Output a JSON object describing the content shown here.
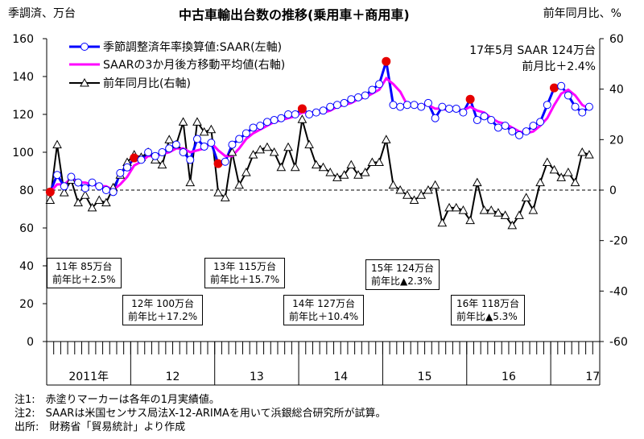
{
  "chart_data": {
    "type": "line",
    "title": "中古車輸出台数の推移(乗用車＋商用車)",
    "left_axis_label": "季調済、万台",
    "right_axis_label": "前年同月比、%",
    "ylim_left": [
      0,
      160
    ],
    "yticks_left": [
      0,
      20,
      40,
      60,
      80,
      100,
      120,
      140,
      160
    ],
    "ylim_right": [
      -60,
      60
    ],
    "yticks_right": [
      "-60",
      "-40",
      "-20",
      "0",
      "20",
      "40",
      "60"
    ],
    "legend_position": "top-left",
    "legend": [
      "季節調整済年率換算値:SAAR(左軸)",
      "SAARの3か月後方移動平均値(右軸)",
      "前年同月比(右軸)"
    ],
    "x_start": "2011-01",
    "year_labels": [
      "2011年",
      "12",
      "13",
      "14",
      "15",
      "16",
      "17"
    ],
    "zero_line": "dashed",
    "latest_note": [
      "17年5月 SAAR 124万台",
      "前月比＋2.4%"
    ],
    "series": [
      {
        "name": "季節調整済年率換算値:SAAR(左軸)",
        "color": "#0000ff",
        "marker": "open-circle",
        "axis": "left",
        "values": [
          79,
          88,
          82,
          87,
          84,
          81,
          84,
          82,
          80,
          79,
          89,
          92,
          97,
          96,
          100,
          98,
          100,
          102,
          104,
          100,
          96,
          107,
          103,
          105,
          94,
          95,
          104,
          107,
          110,
          113,
          114,
          116,
          117,
          118,
          120,
          120,
          123,
          120,
          121,
          122,
          124,
          125,
          126,
          128,
          129,
          130,
          133,
          136,
          148,
          125,
          124,
          125,
          125,
          124,
          126,
          118,
          124,
          123,
          123,
          121,
          128,
          117,
          119,
          117,
          113,
          114,
          111,
          109,
          111,
          114,
          116,
          125,
          134,
          135,
          130,
          124,
          121,
          124
        ]
      },
      {
        "name": "SAARの3か月後方移動平均値(右軸)",
        "color": "#ff00ff",
        "axis": "left",
        "values": [
          79,
          83,
          83,
          86,
          84,
          84,
          83,
          82,
          82,
          80,
          83,
          87,
          93,
          95,
          98,
          98,
          99,
          100,
          102,
          102,
          100,
          101,
          102,
          105,
          101,
          98,
          98,
          102,
          107,
          110,
          112,
          114,
          116,
          117,
          118,
          119,
          121,
          121,
          121,
          121,
          122,
          124,
          125,
          126,
          128,
          129,
          131,
          133,
          139,
          136,
          132,
          125,
          125,
          125,
          125,
          123,
          123,
          122,
          123,
          122,
          124,
          122,
          121,
          118,
          116,
          115,
          113,
          111,
          110,
          111,
          114,
          118,
          125,
          131,
          133,
          130,
          125,
          123
        ]
      },
      {
        "name": "前年同月比(右軸)",
        "color": "#000000",
        "marker": "open-triangle",
        "axis": "right",
        "values": [
          -4,
          18,
          -1,
          4,
          -5,
          -2,
          -7,
          -4,
          -5,
          1,
          6,
          11,
          14,
          13,
          15,
          12,
          10,
          20,
          18,
          27,
          3,
          27,
          23,
          24,
          -1,
          -3,
          15,
          2,
          7,
          14,
          16,
          17,
          15,
          9,
          17,
          9,
          28,
          18,
          10,
          9,
          7,
          5,
          6,
          10,
          6,
          7,
          11,
          11,
          20,
          2,
          0,
          -2,
          -4,
          -2,
          0,
          2,
          -13,
          -7,
          -7,
          -8,
          -12,
          3,
          -8,
          -8,
          -9,
          -10,
          -14,
          -10,
          -3,
          -8,
          3,
          11,
          8,
          5,
          7,
          3,
          15,
          14
        ]
      }
    ],
    "january_markers": {
      "color": "#e60000",
      "indices": [
        0,
        12,
        24,
        36,
        48,
        60,
        72
      ]
    },
    "callouts": [
      {
        "line1": "11年 85万台",
        "line2": "前年比＋2.5%"
      },
      {
        "line1": "12年 100万台",
        "line2": "前年比＋17.2%"
      },
      {
        "line1": "13年 115万台",
        "line2": "前年比＋15.7%"
      },
      {
        "line1": "14年 127万台",
        "line2": "前年比＋10.4%"
      },
      {
        "line1": "15年 124万台",
        "line2": "前年比▲2.3%"
      },
      {
        "line1": "16年 118万台",
        "line2": "前年比▲5.3%"
      }
    ]
  },
  "notes": [
    "注1:　赤塗りマーカーは各年の1月実績値。",
    "注2:　SAARは米国センサス局法X-12-ARIMAを用いて浜銀総合研究所が試算。",
    "出所:　財務省「貿易統計」より作成"
  ]
}
